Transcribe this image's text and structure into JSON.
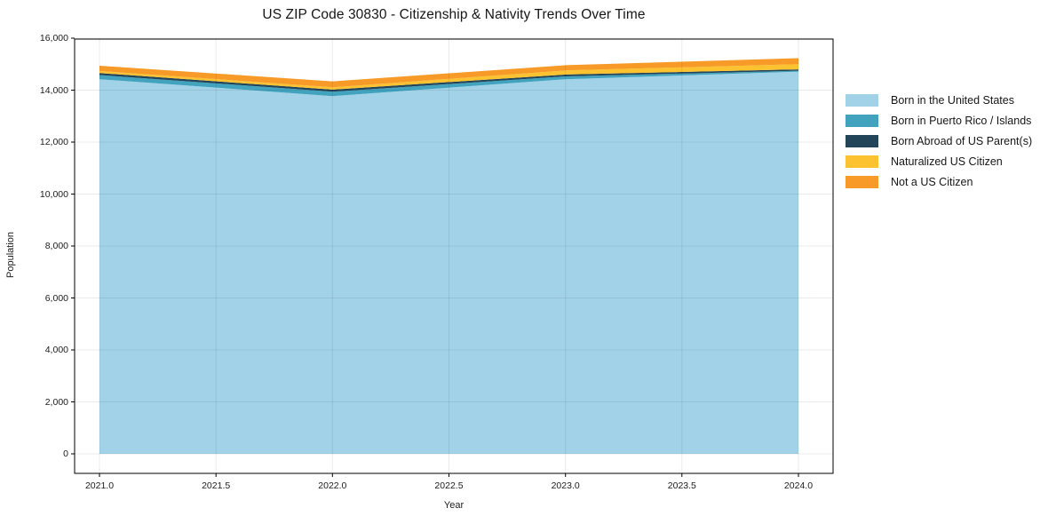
{
  "chart_data": {
    "type": "area",
    "stacked": true,
    "title": "US ZIP Code 30830 - Citizenship & Nativity Trends Over Time",
    "xlabel": "Year",
    "ylabel": "Population",
    "x": [
      2021,
      2022,
      2023,
      2024
    ],
    "series": [
      {
        "name": "Born in the United States",
        "color": "#a2d2e7",
        "values": [
          14420,
          13770,
          14420,
          14710
        ]
      },
      {
        "name": "Born in Puerto Rico / Islands",
        "color": "#42a3bf",
        "values": [
          160,
          170,
          110,
          40
        ]
      },
      {
        "name": "Born Abroad of US Parent(s)",
        "color": "#23455a",
        "values": [
          80,
          80,
          70,
          50
        ]
      },
      {
        "name": "Naturalized US Citizen",
        "color": "#fcc22f",
        "values": [
          80,
          90,
          160,
          200
        ]
      },
      {
        "name": "Not a US Citizen",
        "color": "#f79a28",
        "values": [
          200,
          230,
          200,
          230
        ]
      }
    ],
    "ylim": [
      0,
      16000
    ],
    "xlim": [
      2020.89,
      2024.15
    ],
    "yticks": {
      "values": [
        0,
        2000,
        4000,
        6000,
        8000,
        10000,
        12000,
        14000,
        16000
      ],
      "labels": [
        "0",
        "2,000",
        "4,000",
        "6,000",
        "8,000",
        "10,000",
        "12,000",
        "14,000",
        "16,000"
      ]
    },
    "xticks": {
      "values": [
        2021.0,
        2021.5,
        2022.0,
        2022.5,
        2023.0,
        2023.5,
        2024.0
      ],
      "labels": [
        "2021.0",
        "2021.5",
        "2022.0",
        "2022.5",
        "2023.0",
        "2023.5",
        "2024.0"
      ]
    },
    "grid": true,
    "legend_position": "right-outside"
  }
}
